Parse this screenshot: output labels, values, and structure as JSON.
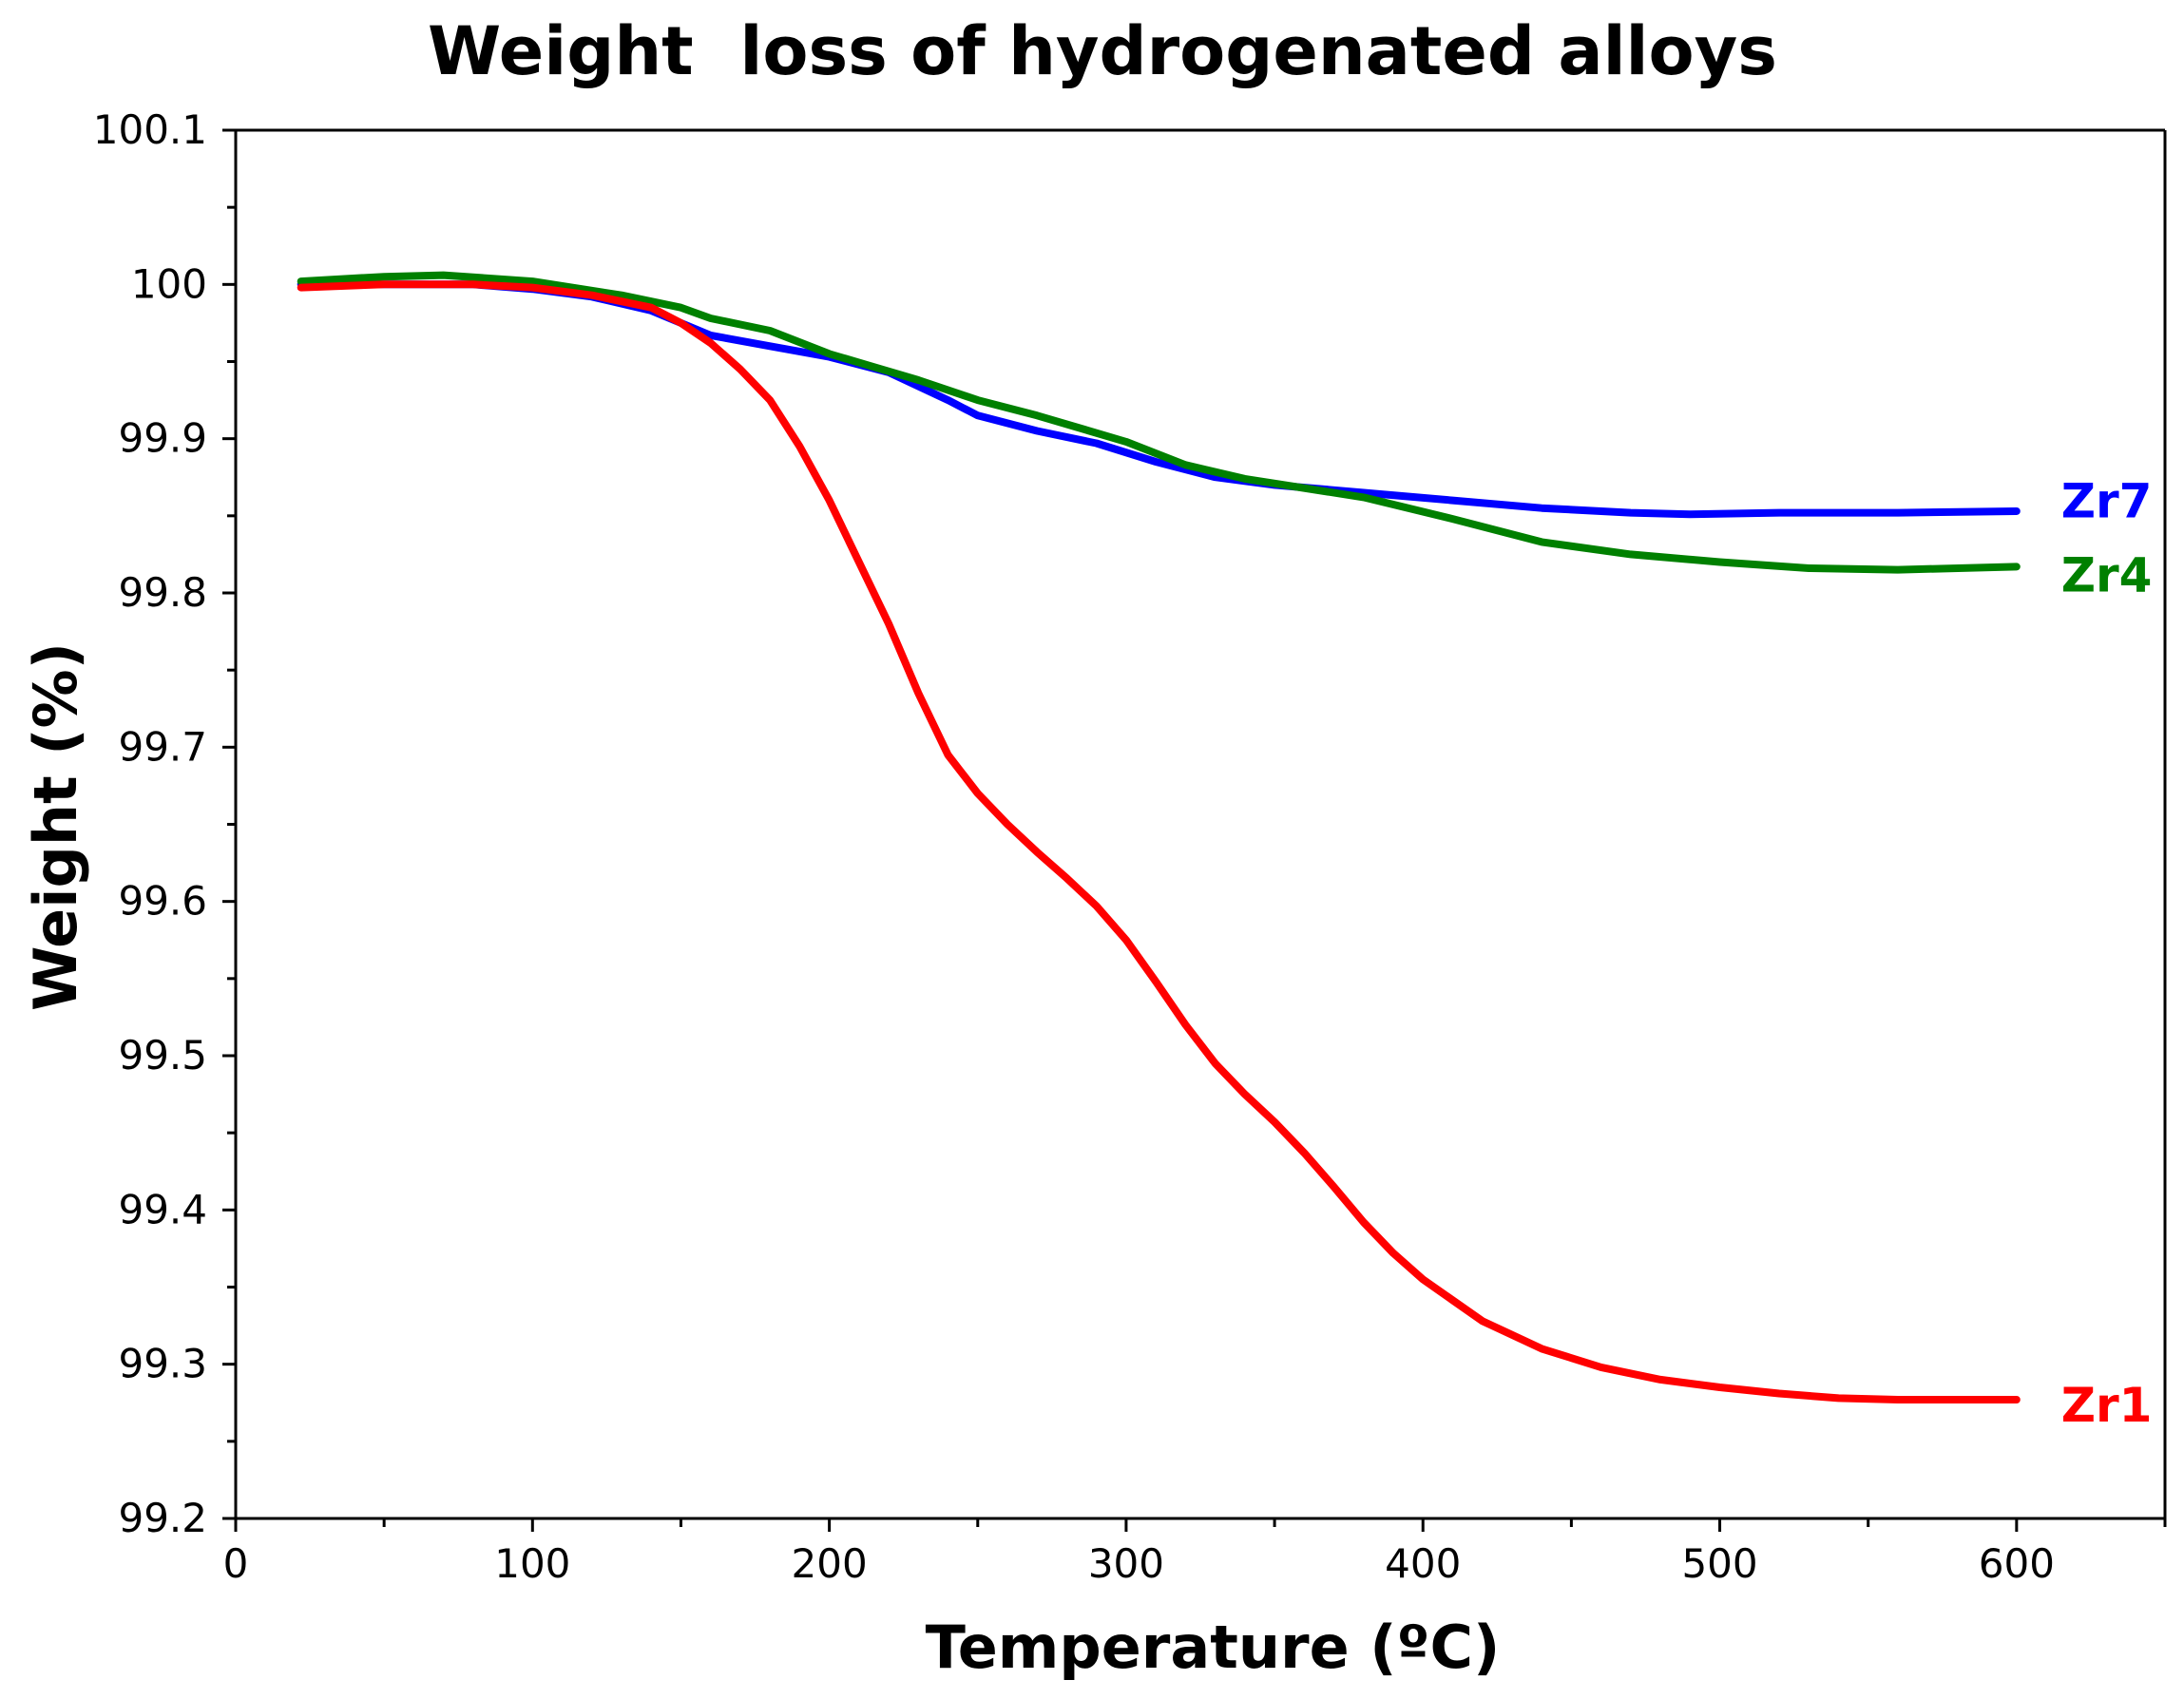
{
  "chart_data": {
    "type": "line",
    "title": "Weight  loss of hydrogenated alloys",
    "xlabel": "Temperature (ºC)",
    "ylabel": "Weight (%)",
    "xlim": [
      0,
      650
    ],
    "ylim": [
      99.2,
      100.1
    ],
    "x_ticks": [
      0,
      100,
      200,
      300,
      400,
      500,
      600
    ],
    "x_tick_labels": [
      "0",
      "100",
      "200",
      "300",
      "400",
      "500",
      "600"
    ],
    "y_ticks": [
      99.2,
      99.3,
      99.4,
      99.5,
      99.6,
      99.7,
      99.8,
      99.9,
      100,
      100.1
    ],
    "y_tick_labels": [
      "99.2",
      "99.3",
      "99.4",
      "99.5",
      "99.6",
      "99.7",
      "99.8",
      "99.9",
      "100",
      "100.1"
    ],
    "grid": false,
    "legend": "inline-right",
    "series": [
      {
        "name": "Zr7",
        "color": "#0000ff",
        "x": [
          22,
          50,
          80,
          100,
          120,
          140,
          150,
          160,
          180,
          200,
          220,
          240,
          250,
          270,
          290,
          310,
          330,
          350,
          380,
          410,
          440,
          470,
          490,
          520,
          560,
          600
        ],
        "y": [
          100.0,
          100.0,
          100.0,
          99.997,
          99.992,
          99.983,
          99.975,
          99.967,
          99.96,
          99.953,
          99.943,
          99.925,
          99.915,
          99.905,
          99.897,
          99.885,
          99.875,
          99.87,
          99.865,
          99.86,
          99.855,
          99.852,
          99.851,
          99.852,
          99.852,
          99.853
        ]
      },
      {
        "name": "Zr4",
        "color": "#008000",
        "x": [
          22,
          50,
          70,
          100,
          130,
          150,
          160,
          180,
          200,
          230,
          250,
          270,
          300,
          320,
          340,
          380,
          410,
          440,
          470,
          500,
          530,
          560,
          600
        ],
        "y": [
          100.002,
          100.005,
          100.006,
          100.002,
          99.993,
          99.985,
          99.978,
          99.97,
          99.955,
          99.938,
          99.925,
          99.915,
          99.898,
          99.883,
          99.874,
          99.862,
          99.848,
          99.833,
          99.825,
          99.82,
          99.816,
          99.815,
          99.817
        ]
      },
      {
        "name": "Zr1",
        "color": "#ff0000",
        "x": [
          22,
          50,
          80,
          100,
          120,
          140,
          150,
          160,
          170,
          180,
          190,
          200,
          210,
          220,
          230,
          240,
          250,
          260,
          270,
          280,
          290,
          300,
          310,
          320,
          330,
          340,
          350,
          360,
          370,
          380,
          390,
          400,
          420,
          440,
          460,
          480,
          500,
          520,
          540,
          560,
          580,
          600
        ],
        "y": [
          99.998,
          100.0,
          100.0,
          99.998,
          99.993,
          99.985,
          99.975,
          99.962,
          99.945,
          99.925,
          99.895,
          99.86,
          99.82,
          99.78,
          99.735,
          99.695,
          99.67,
          99.65,
          99.632,
          99.615,
          99.597,
          99.575,
          99.548,
          99.52,
          99.495,
          99.475,
          99.457,
          99.437,
          99.415,
          99.392,
          99.372,
          99.355,
          99.328,
          99.31,
          99.298,
          99.29,
          99.285,
          99.281,
          99.278,
          99.277,
          99.277,
          99.277
        ]
      }
    ],
    "annotations": [
      {
        "text": "Zr7",
        "series": "Zr7",
        "x": 615,
        "y": 99.86,
        "color": "#0000ff"
      },
      {
        "text": "Zr4",
        "series": "Zr4",
        "x": 615,
        "y": 99.812,
        "color": "#008000"
      },
      {
        "text": "Zr1",
        "series": "Zr1",
        "x": 615,
        "y": 99.274,
        "color": "#ff0000"
      }
    ]
  }
}
